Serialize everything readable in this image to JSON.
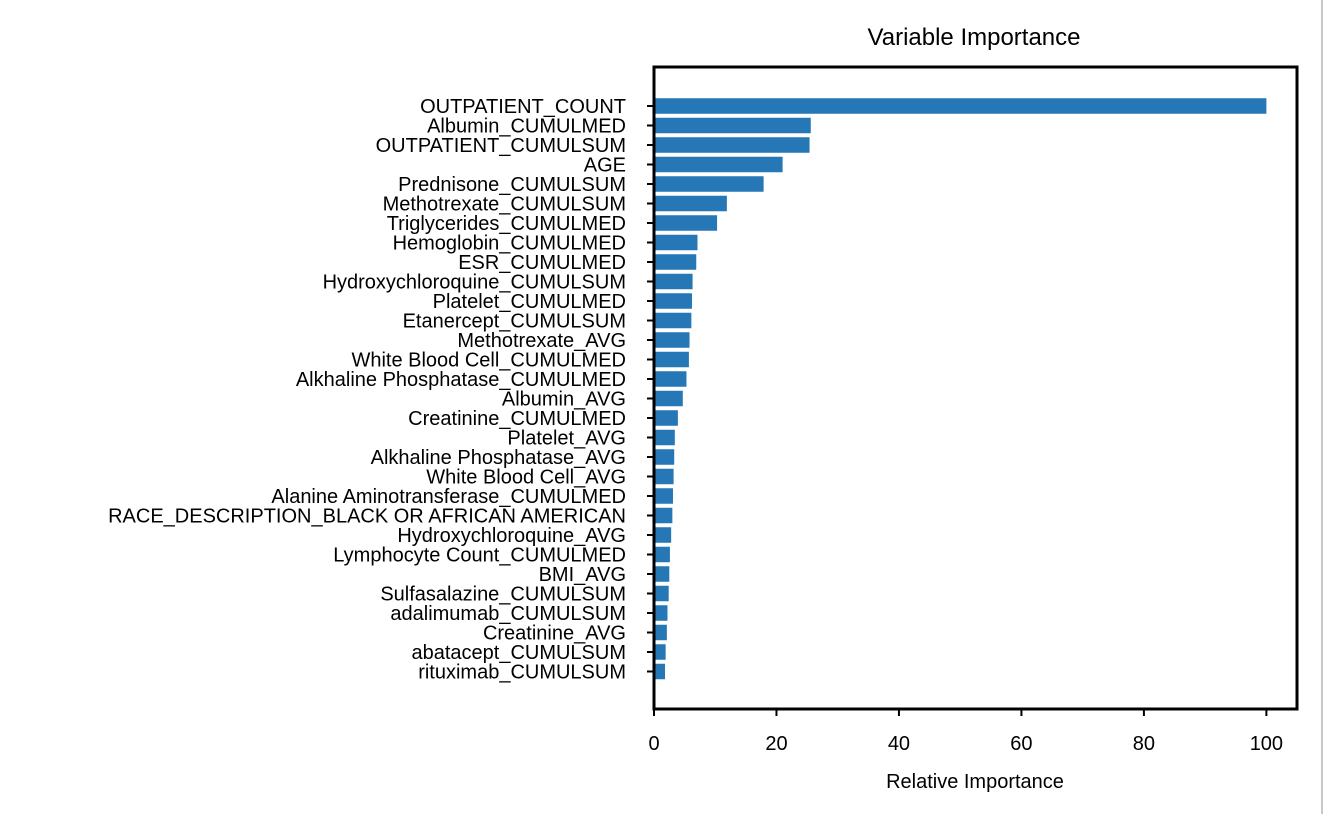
{
  "chart_data": {
    "type": "bar",
    "orientation": "horizontal",
    "title": "Variable Importance",
    "xlabel": "Relative Importance",
    "ylabel": "",
    "xlim": [
      0,
      105
    ],
    "xticks": [
      0,
      20,
      40,
      60,
      80,
      100
    ],
    "grid": false,
    "legend": "none",
    "bar_color": "#2577b5",
    "categories": [
      "OUTPATIENT_COUNT",
      "Albumin_CUMULMED",
      "OUTPATIENT_CUMULSUM",
      "AGE",
      "Prednisone_CUMULSUM",
      "Methotrexate_CUMULSUM",
      "Triglycerides_CUMULMED",
      "Hemoglobin_CUMULMED",
      "ESR_CUMULMED",
      "Hydroxychloroquine_CUMULSUM",
      "Platelet_CUMULMED",
      "Etanercept_CUMULSUM",
      "Methotrexate_AVG",
      "White Blood Cell_CUMULMED",
      "Alkhaline Phosphatase_CUMULMED",
      "Albumin_AVG",
      "Creatinine_CUMULMED",
      "Platelet_AVG",
      "Alkhaline Phosphatase_AVG",
      "White Blood Cell_AVG",
      "Alanine Aminotransferase_CUMULMED",
      "RACE_DESCRIPTION_BLACK OR AFRICAN AMERICAN",
      "Hydroxychloroquine_AVG",
      "Lymphocyte Count_CUMULMED",
      "BMI_AVG",
      "Sulfasalazine_CUMULSUM",
      "adalimumab_CUMULSUM",
      "Creatinine_AVG",
      "abatacept_CUMULSUM",
      "rituximab_CUMULSUM"
    ],
    "values": [
      100,
      25.6,
      25.4,
      21.0,
      17.9,
      11.9,
      10.3,
      7.1,
      6.9,
      6.3,
      6.2,
      6.1,
      5.8,
      5.7,
      5.3,
      4.7,
      3.9,
      3.4,
      3.3,
      3.2,
      3.1,
      3.0,
      2.8,
      2.6,
      2.5,
      2.4,
      2.2,
      2.1,
      1.9,
      1.8
    ]
  }
}
